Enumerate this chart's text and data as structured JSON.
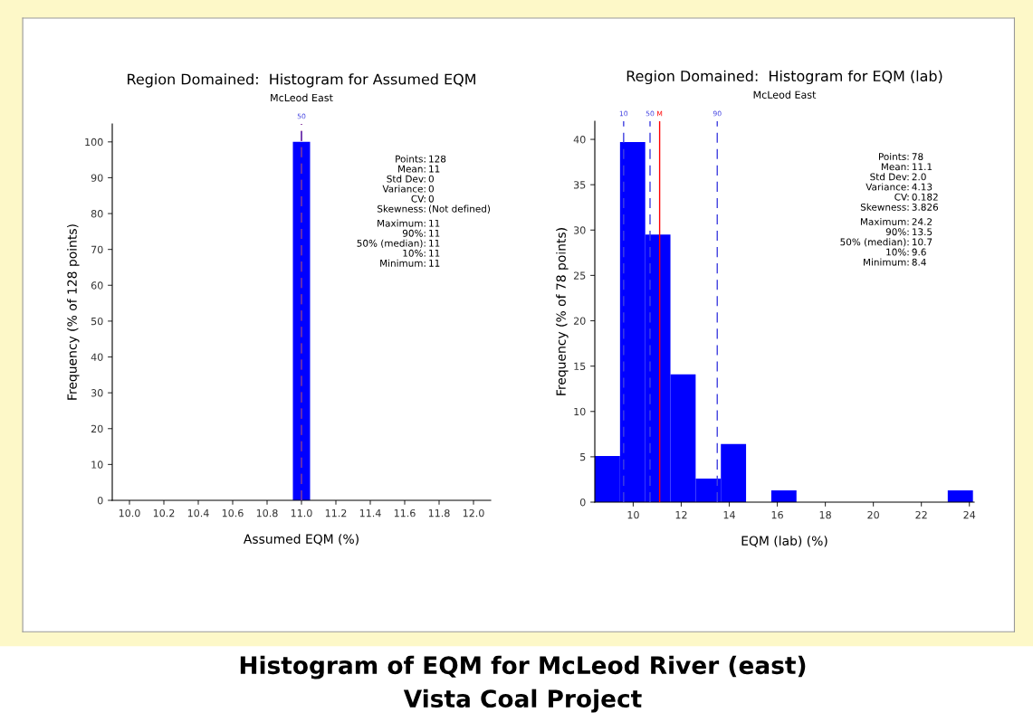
{
  "chart_data": [
    {
      "type": "histogram",
      "title": "Region Domained:  Histogram for Assumed EQM",
      "subtitle": "McLeod East",
      "xlabel": "Assumed EQM (%)",
      "ylabel": "Frequency (% of 128 points)",
      "bins": [
        10.95,
        11.05
      ],
      "values": [
        100
      ],
      "color": "#0000ff",
      "xlim": [
        9.9,
        12.1
      ],
      "xticks": [
        {
          "value": 10,
          "label": "10.0"
        },
        10.2,
        10.4,
        10.6,
        10.8,
        {
          "value": 11,
          "label": "11.0"
        },
        11.2,
        11.4,
        11.6,
        11.8,
        {
          "value": 12,
          "label": "12.0"
        }
      ],
      "ylim": [
        0,
        105
      ],
      "yticks": [
        0,
        10,
        20,
        30,
        40,
        50,
        60,
        70,
        80,
        90,
        100
      ],
      "grid": false,
      "ref_lines": [
        {
          "axis": "x",
          "value": 11,
          "label": null,
          "color": "#ff0000",
          "line_style": "dashed"
        },
        {
          "axis": "x",
          "value": 11,
          "color": "#4040e0",
          "line_style": "dashed"
        }
      ],
      "annotations": [
        {
          "text": "50",
          "x": 11,
          "y": 105
        },
        "Points: 128",
        "Mean: 11",
        "Std Dev: 0",
        "Variance: 0",
        "CV: 0",
        "Skewness: (Not defined)",
        "Maximum: 11",
        "90%: 11",
        "50% (median): 11",
        "10%: 11",
        "Minimum: 11"
      ]
    },
    {
      "type": "histogram",
      "title": "Region Domained:  Histogram for EQM (lab)",
      "subtitle": "McLeod East",
      "xlabel": "EQM (lab) (%)",
      "ylabel": "Frequency (% of 78 points)",
      "bins": [
        8.4,
        9.45,
        10.5,
        11.55,
        12.6,
        13.65,
        14.7,
        15.75,
        16.8,
        17.85,
        18.9,
        19.95,
        21.0,
        22.05,
        23.1,
        24.15
      ],
      "values": [
        5.1,
        39.7,
        29.5,
        14.1,
        2.6,
        6.4,
        0,
        1.3,
        0,
        0,
        0,
        0,
        0,
        0,
        1.3
      ],
      "color": "#0000ff",
      "xlim": [
        8.4,
        24.2
      ],
      "xticks": [
        10,
        12,
        14,
        16,
        18,
        20,
        22,
        24
      ],
      "ylim": [
        0,
        42
      ],
      "yticks": [
        0,
        5,
        10,
        15,
        20,
        25,
        30,
        35,
        40
      ],
      "grid": false,
      "ref_lines": [
        {
          "axis": "x",
          "value": 9.6,
          "color": "#4040e0",
          "line_style": "dashed"
        },
        {
          "axis": "x",
          "value": 10.7,
          "color": "#4040e0",
          "line_style": "dashed"
        },
        {
          "axis": "x",
          "value": 11.1,
          "color": "#ff0000",
          "line_style": "solid"
        },
        {
          "axis": "x",
          "value": 13.5,
          "color": "#4040e0",
          "line_style": "dashed"
        }
      ],
      "annotations": [
        {
          "text": "10",
          "x": 9.6,
          "y": 42
        },
        {
          "text": "50",
          "x": 10.7,
          "y": 42
        },
        {
          "text": "M",
          "x": 11.1,
          "y": 42
        },
        {
          "text": "90",
          "x": 13.5,
          "y": 42
        },
        "Points: 78",
        "Mean: 11.1",
        "Std Dev: 2.0",
        "Variance: 4.13",
        "CV: 0.182",
        "Skewness: 3.826",
        "Maximum: 24.2",
        "90%: 13.5",
        "50% (median): 10.7",
        "10%: 9.6",
        "Minimum: 8.4"
      ]
    },
    {
      "type": "other",
      "title": "Histogram of EQM for McLeod River (east)",
      "subtitle": "Vista Coal Project"
    }
  ]
}
